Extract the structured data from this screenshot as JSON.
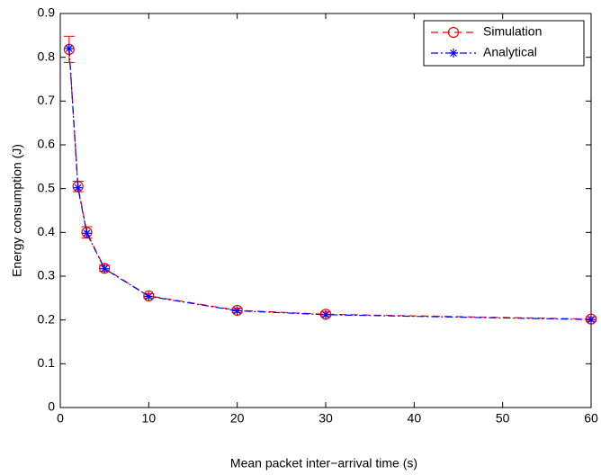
{
  "chart_data": {
    "type": "line",
    "xlabel": "Mean packet inter−arrival time (s)",
    "ylabel": "Energy consumption (J)",
    "x": [
      1,
      2,
      3,
      5,
      10,
      20,
      30,
      60
    ],
    "series": [
      {
        "name": "Simulation",
        "color": "#ff0000",
        "marker": "circle",
        "dash": "dashed",
        "values": [
          0.818,
          0.505,
          0.4,
          0.318,
          0.255,
          0.222,
          0.213,
          0.202
        ],
        "errors": [
          0.03,
          0.012,
          0.013,
          0.007,
          0.005,
          0.005,
          0.005,
          0.005
        ]
      },
      {
        "name": "Analytical",
        "color": "#0000ff",
        "marker": "asterisk",
        "dash": "dashdot",
        "values": [
          0.82,
          0.502,
          0.398,
          0.317,
          0.254,
          0.221,
          0.212,
          0.201
        ]
      }
    ],
    "xlim": [
      0,
      60
    ],
    "xticks": [
      0,
      10,
      20,
      30,
      40,
      50,
      60
    ],
    "ylim": [
      0,
      0.9
    ],
    "yticks": [
      0,
      0.1,
      0.2,
      0.3,
      0.4,
      0.5,
      0.6,
      0.7,
      0.8,
      0.9
    ],
    "legend": "upper right",
    "grid": false
  }
}
